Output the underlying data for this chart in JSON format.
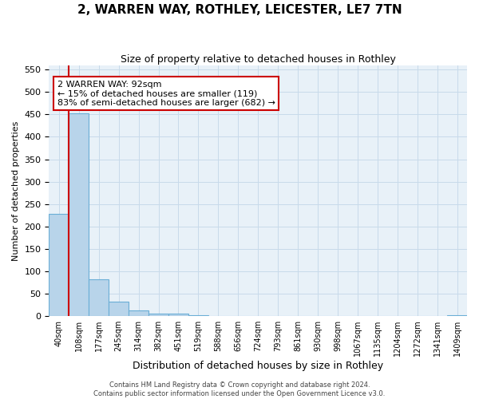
{
  "title": "2, WARREN WAY, ROTHLEY, LEICESTER, LE7 7TN",
  "subtitle": "Size of property relative to detached houses in Rothley",
  "xlabel": "Distribution of detached houses by size in Rothley",
  "ylabel": "Number of detached properties",
  "bin_labels": [
    "40sqm",
    "108sqm",
    "177sqm",
    "245sqm",
    "314sqm",
    "382sqm",
    "451sqm",
    "519sqm",
    "588sqm",
    "656sqm",
    "724sqm",
    "793sqm",
    "861sqm",
    "930sqm",
    "998sqm",
    "1067sqm",
    "1135sqm",
    "1204sqm",
    "1272sqm",
    "1341sqm",
    "1409sqm"
  ],
  "bar_heights": [
    228,
    452,
    82,
    32,
    13,
    6,
    5,
    1,
    0,
    0,
    0,
    0,
    0,
    0,
    0,
    0,
    0,
    0,
    0,
    0,
    2
  ],
  "bar_color": "#b8d4ea",
  "bar_edge_color": "#6aaed6",
  "property_line_color": "#cc0000",
  "annotation_box_text": "2 WARREN WAY: 92sqm\n← 15% of detached houses are smaller (119)\n83% of semi-detached houses are larger (682) →",
  "annotation_box_color": "#cc0000",
  "ylim": [
    0,
    560
  ],
  "yticks": [
    0,
    50,
    100,
    150,
    200,
    250,
    300,
    350,
    400,
    450,
    500,
    550
  ],
  "footer_line1": "Contains HM Land Registry data © Crown copyright and database right 2024.",
  "footer_line2": "Contains public sector information licensed under the Open Government Licence v3.0.",
  "grid_color": "#c8daea",
  "background_color": "#e8f1f8",
  "title_fontsize": 11,
  "subtitle_fontsize": 9,
  "xlabel_fontsize": 9,
  "ylabel_fontsize": 8,
  "tick_fontsize": 8,
  "xtick_fontsize": 7,
  "annotation_fontsize": 8,
  "footer_fontsize": 6
}
